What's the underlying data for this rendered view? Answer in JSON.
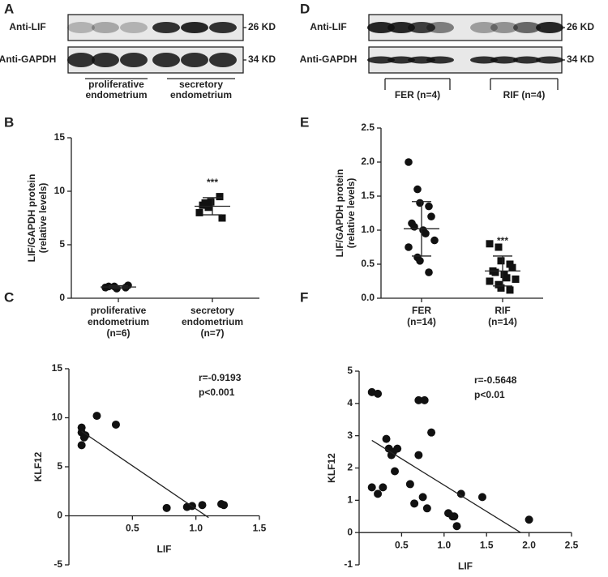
{
  "blots": [
    {
      "label": "A",
      "rows": [
        "Anti-LIF",
        "Anti-GAPDH"
      ],
      "sizes": [
        "26 KD",
        "34 KD"
      ],
      "groups": [
        [
          "proliferative",
          "endometrium"
        ],
        [
          "secretory",
          "endometrium"
        ]
      ]
    },
    {
      "label": "D",
      "rows": [
        "Anti-LIF",
        "Anti-GAPDH"
      ],
      "sizes": [
        "26 KD",
        "34 KD"
      ],
      "groups": [
        [
          "FER (n=4)"
        ],
        [
          "RIF (n=4)"
        ]
      ]
    }
  ],
  "chart_data": [
    {
      "type": "dot",
      "label": "B",
      "ylabel": [
        "LIF/GAPDH protein",
        "(relative levels)"
      ],
      "categories": [
        [
          "proliferative",
          "endometrium",
          "(n=6)"
        ],
        [
          "secretory",
          "endometrium",
          "(n=7)"
        ]
      ],
      "groups": [
        {
          "marker": "circle",
          "values": [
            1.0,
            1.1,
            0.9,
            1.0,
            1.2,
            1.1
          ],
          "mean": 1.05,
          "sd": 0.12
        },
        {
          "marker": "square",
          "values": [
            8.0,
            8.5,
            9.0,
            9.5,
            7.5,
            8.7,
            8.9
          ],
          "mean": 8.6,
          "sd": 0.8,
          "annotation": "***"
        }
      ],
      "ylim": [
        0,
        15
      ],
      "yticks": [
        0,
        5,
        10,
        15
      ],
      "color": "#111111"
    },
    {
      "type": "dot",
      "label": "E",
      "ylabel": [
        "LIF/GAPDH protein",
        "(relative levels)"
      ],
      "categories": [
        [
          "FER",
          "(n=14)"
        ],
        [
          "RIF",
          "(n=14)"
        ]
      ],
      "groups": [
        {
          "marker": "circle",
          "values": [
            2.0,
            1.6,
            1.4,
            1.35,
            1.2,
            1.1,
            1.05,
            1.0,
            0.95,
            0.85,
            0.75,
            0.6,
            0.55,
            0.38
          ],
          "mean": 1.02,
          "sd": 0.4
        },
        {
          "marker": "square",
          "values": [
            0.8,
            0.75,
            0.55,
            0.5,
            0.45,
            0.4,
            0.38,
            0.35,
            0.3,
            0.28,
            0.25,
            0.2,
            0.15,
            0.12
          ],
          "mean": 0.4,
          "sd": 0.22,
          "annotation": "***"
        }
      ],
      "ylim": [
        0,
        2.5
      ],
      "yticks": [
        {
          "value": 0,
          "label": "0.0"
        },
        0.5,
        {
          "value": 1,
          "label": "1.0"
        },
        1.5,
        {
          "value": 2,
          "label": "2.0"
        },
        2.5
      ],
      "color": "#111111"
    },
    {
      "type": "scatter",
      "label": "C",
      "xlabel": "LIF",
      "ylabel": "KLF12",
      "annotations": [
        "r=-0.9193",
        "p<0.001"
      ],
      "x": [
        0.1,
        0.1,
        0.12,
        0.1,
        0.13,
        0.22,
        0.37,
        0.77,
        0.93,
        0.97,
        1.05,
        1.2,
        1.22
      ],
      "y": [
        9.0,
        8.5,
        8.0,
        7.2,
        8.2,
        10.2,
        9.3,
        0.8,
        0.9,
        1.0,
        1.1,
        1.2,
        1.1
      ],
      "fit": {
        "slope": -8.8,
        "intercept": 9.5,
        "x_range": [
          0.1,
          1.1
        ]
      },
      "xlim": [
        0,
        1.5
      ],
      "xticks": [
        0.5,
        {
          "value": 1,
          "label": "1.0"
        },
        1.5
      ],
      "ylim": [
        -5,
        15
      ],
      "yticks": [
        -5,
        0,
        5,
        10,
        15
      ],
      "color": "#111111"
    },
    {
      "type": "scatter",
      "label": "F",
      "xlabel": "LIF",
      "ylabel": "KLF12",
      "annotations": [
        "r=-0.5648",
        "p<0.01"
      ],
      "x": [
        0.15,
        0.22,
        0.7,
        0.77,
        0.85,
        0.28,
        0.15,
        0.22,
        0.32,
        0.35,
        0.38,
        0.4,
        0.45,
        0.42,
        0.6,
        0.7,
        0.75,
        0.65,
        0.8,
        1.05,
        1.1,
        1.12,
        1.15,
        1.2,
        1.45,
        2.0
      ],
      "y": [
        4.35,
        4.3,
        4.1,
        4.1,
        3.1,
        1.4,
        1.4,
        1.2,
        2.9,
        2.6,
        2.4,
        2.5,
        2.6,
        1.9,
        1.5,
        2.4,
        1.1,
        0.9,
        0.75,
        0.6,
        0.5,
        0.5,
        0.2,
        1.2,
        1.1,
        0.4
      ],
      "fit": {
        "slope": -1.63,
        "intercept": 3.1,
        "x_range": [
          0.15,
          1.9
        ]
      },
      "xlim": [
        0,
        2.5
      ],
      "xticks": [
        0.5,
        {
          "value": 1,
          "label": "1.0"
        },
        1.5,
        {
          "value": 2,
          "label": "2.0"
        },
        2.5
      ],
      "ylim": [
        -1,
        5
      ],
      "yticks": [
        -1,
        0,
        1,
        2,
        3,
        4,
        5
      ],
      "color": "#111111"
    }
  ]
}
